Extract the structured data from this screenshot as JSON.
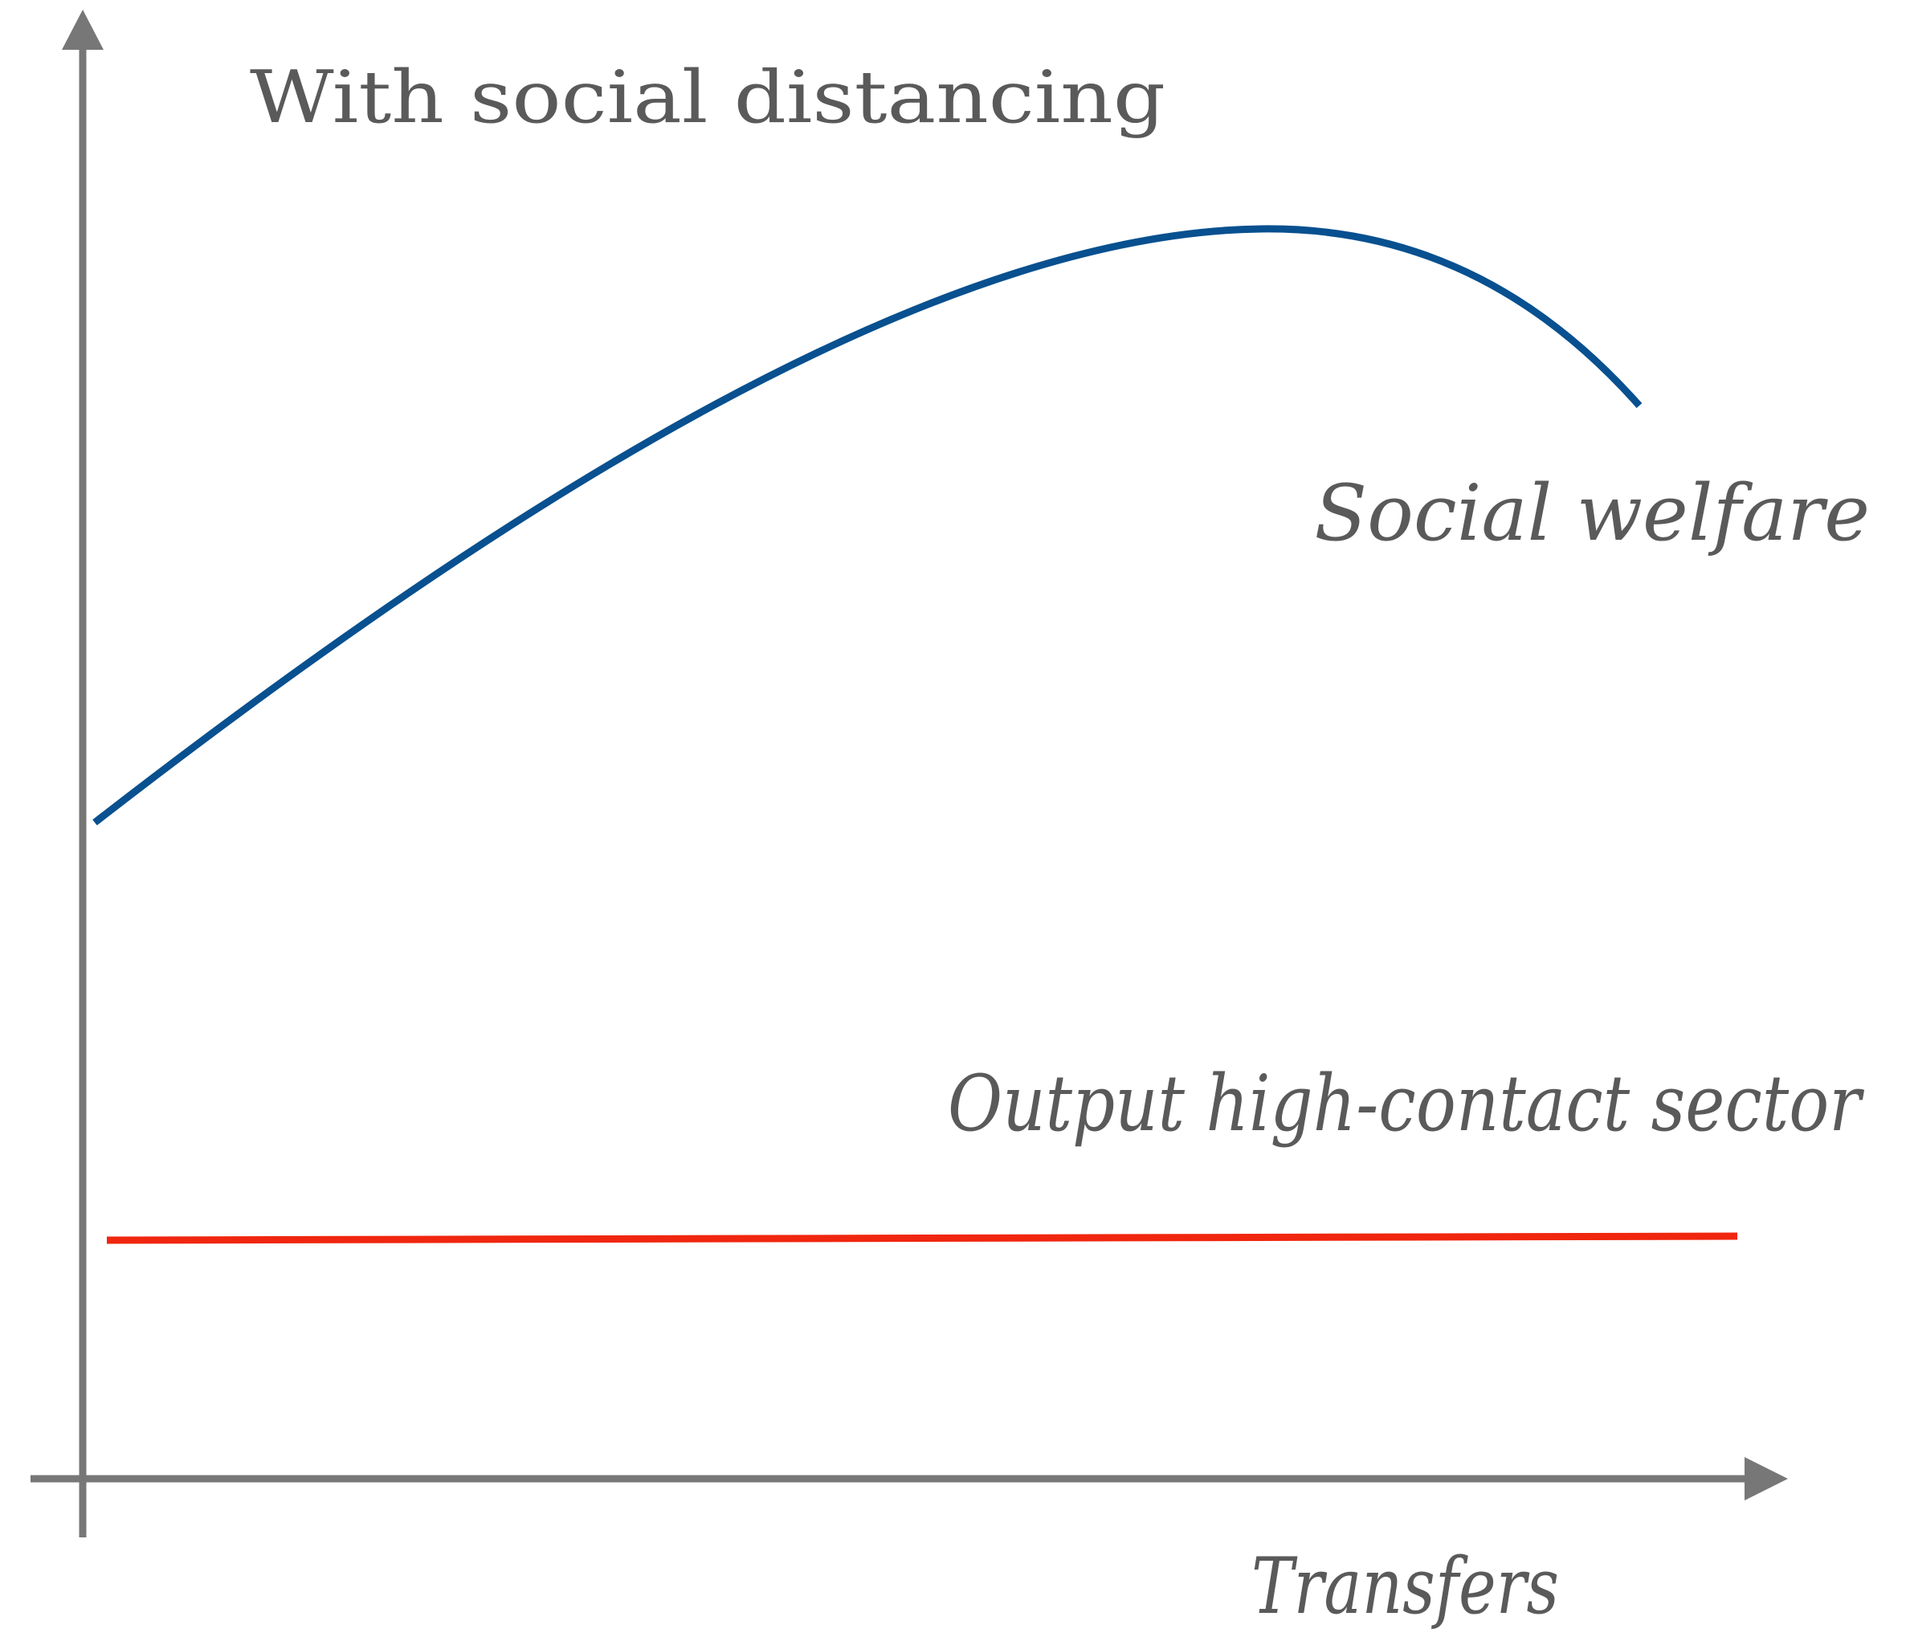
{
  "title": "With social distancing",
  "curves": [
    {
      "label": "Social welfare"
    },
    {
      "label": "Output high-contact sector"
    }
  ],
  "x_axis": {
    "label": "Transfers"
  }
}
